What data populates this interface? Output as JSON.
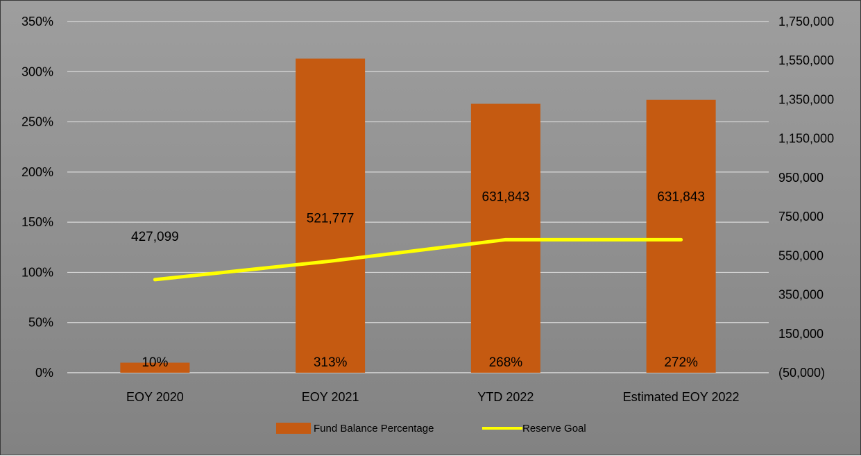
{
  "chart_data": {
    "type": "bar",
    "categories": [
      "EOY 2020",
      "EOY 2021",
      "YTD 2022",
      "Estimated EOY 2022"
    ],
    "series": [
      {
        "name": "Fund Balance Percentage",
        "kind": "bar",
        "axis": "left",
        "color": "#C55A11",
        "values": [
          0.1,
          3.13,
          2.68,
          2.72
        ],
        "labels": [
          "10%",
          "313%",
          "268%",
          "272%"
        ]
      },
      {
        "name": "Reserve Goal",
        "kind": "line",
        "axis": "right",
        "color": "#FFFF00",
        "values": [
          427099,
          521777,
          631843,
          631843
        ],
        "labels": [
          "427,099",
          "521,777",
          "631,843",
          "631,843"
        ]
      }
    ],
    "left_axis": {
      "ylim": [
        0,
        3.5
      ],
      "ticks": [
        0,
        0.5,
        1.0,
        1.5,
        2.0,
        2.5,
        3.0,
        3.5
      ],
      "tick_labels": [
        "0%",
        "50%",
        "100%",
        "150%",
        "200%",
        "250%",
        "300%",
        "350%"
      ]
    },
    "right_axis": {
      "ylim": [
        -50000,
        1750000
      ],
      "ticks": [
        -50000,
        150000,
        350000,
        550000,
        750000,
        950000,
        1150000,
        1350000,
        1550000,
        1750000
      ],
      "tick_labels": [
        "(50,000)",
        "150,000",
        "350,000",
        "550,000",
        "750,000",
        "950,000",
        "1,150,000",
        "1,350,000",
        "1,550,000",
        "1,750,000"
      ]
    },
    "grid": true,
    "legend_position": "bottom"
  }
}
